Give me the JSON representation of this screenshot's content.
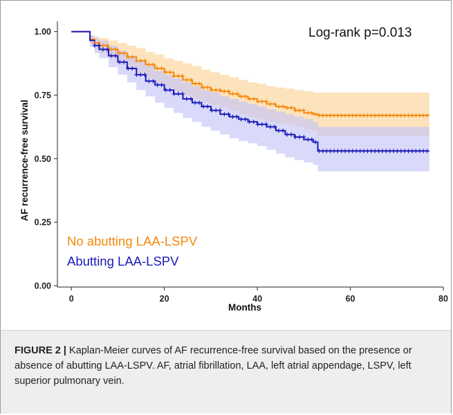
{
  "figure": {
    "caption_label": "FIGURE 2 |",
    "caption_text": " Kaplan-Meier curves of AF recurrence-free survival based on the presence or absence of abutting LAA-LSPV. AF, atrial fibrillation, LAA, left atrial appendage, LSPV, left superior pulmonary vein."
  },
  "chart_data": {
    "type": "line",
    "title": "",
    "xlabel": "Months",
    "ylabel": "AF recurrence-free survival",
    "xlim": [
      -3,
      80
    ],
    "ylim": [
      0,
      1.04
    ],
    "xticks": [
      0,
      20,
      40,
      60,
      80
    ],
    "xtick_labels": [
      "0",
      "20",
      "40",
      "60",
      "80"
    ],
    "yticks": [
      0,
      0.25,
      0.5,
      0.75,
      1.0
    ],
    "ytick_labels": [
      "0.00",
      "0.25",
      "0.50",
      "0.75",
      "1.00"
    ],
    "grid": false,
    "annotation": "Log-rank p=0.013",
    "legend_placement": "bottom-left",
    "series": [
      {
        "name": "No abutting LAA-LSPV",
        "color": "#f5890f",
        "band_color": "#fbd9a6",
        "x": [
          0,
          3,
          4,
          5,
          6,
          8,
          10,
          12,
          14,
          16,
          18,
          20,
          22,
          24,
          26,
          28,
          30,
          32,
          34,
          36,
          38,
          40,
          42,
          44,
          46,
          48,
          50,
          52,
          53,
          56,
          60,
          65,
          70,
          77
        ],
        "y": [
          1.0,
          1.0,
          0.97,
          0.955,
          0.945,
          0.93,
          0.915,
          0.9,
          0.885,
          0.87,
          0.855,
          0.84,
          0.825,
          0.81,
          0.795,
          0.78,
          0.77,
          0.765,
          0.755,
          0.745,
          0.735,
          0.725,
          0.715,
          0.705,
          0.7,
          0.69,
          0.68,
          0.675,
          0.67,
          0.67,
          0.67,
          0.67,
          0.67,
          0.67
        ],
        "lower": [
          1.0,
          1.0,
          0.95,
          0.93,
          0.915,
          0.895,
          0.875,
          0.855,
          0.835,
          0.815,
          0.795,
          0.78,
          0.765,
          0.75,
          0.735,
          0.72,
          0.71,
          0.7,
          0.69,
          0.675,
          0.665,
          0.655,
          0.645,
          0.64,
          0.635,
          0.625,
          0.615,
          0.61,
          0.59,
          0.59,
          0.59,
          0.59,
          0.59,
          0.59
        ],
        "upper": [
          1.0,
          1.0,
          0.985,
          0.98,
          0.975,
          0.965,
          0.955,
          0.945,
          0.935,
          0.92,
          0.91,
          0.895,
          0.885,
          0.875,
          0.865,
          0.85,
          0.84,
          0.83,
          0.82,
          0.81,
          0.8,
          0.795,
          0.785,
          0.78,
          0.775,
          0.77,
          0.765,
          0.76,
          0.76,
          0.76,
          0.76,
          0.76,
          0.76,
          0.76
        ]
      },
      {
        "name": "Abutting LAA-LSPV",
        "color": "#1a1ab8",
        "band_color": "#c4c4f7",
        "x": [
          0,
          3,
          4,
          5,
          6,
          8,
          10,
          12,
          14,
          16,
          18,
          20,
          22,
          24,
          26,
          28,
          30,
          32,
          34,
          36,
          38,
          40,
          42,
          44,
          46,
          48,
          50,
          52,
          53,
          56,
          60,
          65,
          70,
          77
        ],
        "y": [
          1.0,
          1.0,
          0.965,
          0.945,
          0.93,
          0.905,
          0.88,
          0.855,
          0.83,
          0.805,
          0.79,
          0.77,
          0.755,
          0.735,
          0.72,
          0.705,
          0.69,
          0.675,
          0.665,
          0.655,
          0.645,
          0.635,
          0.625,
          0.61,
          0.595,
          0.585,
          0.575,
          0.565,
          0.53,
          0.53,
          0.53,
          0.53,
          0.53,
          0.53
        ],
        "lower": [
          1.0,
          1.0,
          0.94,
          0.915,
          0.895,
          0.86,
          0.83,
          0.8,
          0.77,
          0.745,
          0.72,
          0.7,
          0.68,
          0.66,
          0.645,
          0.625,
          0.61,
          0.595,
          0.58,
          0.57,
          0.56,
          0.55,
          0.535,
          0.52,
          0.505,
          0.495,
          0.485,
          0.475,
          0.45,
          0.45,
          0.45,
          0.45,
          0.45,
          0.45
        ],
        "upper": [
          1.0,
          1.0,
          0.985,
          0.975,
          0.965,
          0.945,
          0.925,
          0.905,
          0.885,
          0.865,
          0.845,
          0.83,
          0.815,
          0.8,
          0.785,
          0.77,
          0.76,
          0.745,
          0.735,
          0.725,
          0.715,
          0.705,
          0.695,
          0.685,
          0.675,
          0.665,
          0.655,
          0.645,
          0.625,
          0.625,
          0.625,
          0.625,
          0.625,
          0.625
        ]
      }
    ]
  }
}
